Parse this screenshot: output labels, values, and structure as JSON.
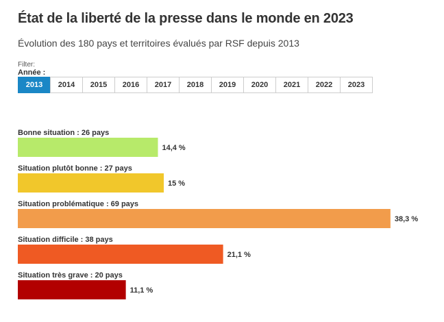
{
  "title": "État de la liberté de la presse dans le monde en 2023",
  "subtitle": "Évolution des 180 pays et territoires évalués par RSF depuis 2013",
  "filter": {
    "caption": "Filter:",
    "label": "Année :",
    "years": [
      "2013",
      "2014",
      "2015",
      "2016",
      "2017",
      "2018",
      "2019",
      "2020",
      "2021",
      "2022",
      "2023"
    ],
    "selected": "2013"
  },
  "colors": {
    "accent": "#1a87c6"
  },
  "chart_data": {
    "type": "bar",
    "orientation": "horizontal",
    "categories": [
      "Bonne situation : 26 pays",
      "Situation plutôt bonne : 27 pays",
      "Situation problématique : 69 pays",
      "Situation difficile : 38 pays",
      "Situation très grave : 20 pays"
    ],
    "values": [
      14.4,
      15,
      38.3,
      21.1,
      11.1
    ],
    "value_labels": [
      "14,4 %",
      "15 %",
      "38,3 %",
      "21,1 %",
      "11,1 %"
    ],
    "colors": [
      "#b7ea6a",
      "#f1c72b",
      "#f29c4b",
      "#ef5a23",
      "#b20000"
    ],
    "xlim": [
      0,
      40
    ],
    "grid": false
  }
}
